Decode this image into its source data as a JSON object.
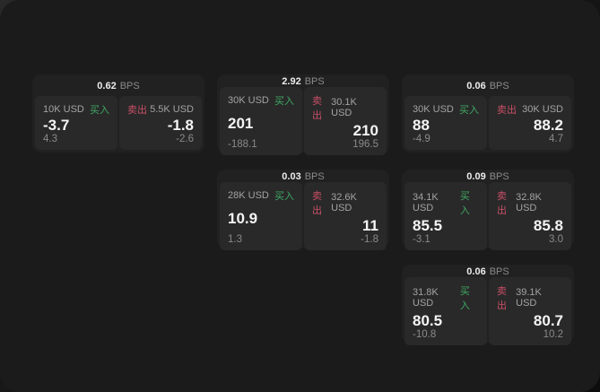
{
  "labels": {
    "buy": "买入",
    "sell": "卖出",
    "bps_unit": "BPS"
  },
  "colors": {
    "buy": "#3fa863",
    "sell": "#c94f66",
    "panel": "#1b1b1b",
    "card": "#212121",
    "cell": "#292929"
  },
  "cards": [
    {
      "bps": "0.62",
      "buy": {
        "amount": "10K USD",
        "price": "-3.7",
        "delta": "4.3"
      },
      "sell": {
        "amount": "5.5K USD",
        "price": "-1.8",
        "delta": "-2.6"
      }
    },
    {
      "bps": "2.92",
      "buy": {
        "amount": "30K USD",
        "price": "201",
        "delta": "-188.1"
      },
      "sell": {
        "amount": "30.1K USD",
        "price": "210",
        "delta": "196.5"
      }
    },
    {
      "bps": "0.06",
      "buy": {
        "amount": "30K USD",
        "price": "88",
        "delta": "-4.9"
      },
      "sell": {
        "amount": "30K USD",
        "price": "88.2",
        "delta": "4.7"
      }
    },
    {
      "bps": "0.03",
      "buy": {
        "amount": "28K USD",
        "price": "10.9",
        "delta": "1.3"
      },
      "sell": {
        "amount": "32.6K USD",
        "price": "11",
        "delta": "-1.8"
      }
    },
    {
      "bps": "0.09",
      "buy": {
        "amount": "34.1K USD",
        "price": "85.5",
        "delta": "-3.1"
      },
      "sell": {
        "amount": "32.8K USD",
        "price": "85.8",
        "delta": "3.0"
      }
    },
    {
      "bps": "0.06",
      "buy": {
        "amount": "31.8K USD",
        "price": "80.5",
        "delta": "-10.8"
      },
      "sell": {
        "amount": "39.1K USD",
        "price": "80.7",
        "delta": "10.2"
      }
    }
  ]
}
